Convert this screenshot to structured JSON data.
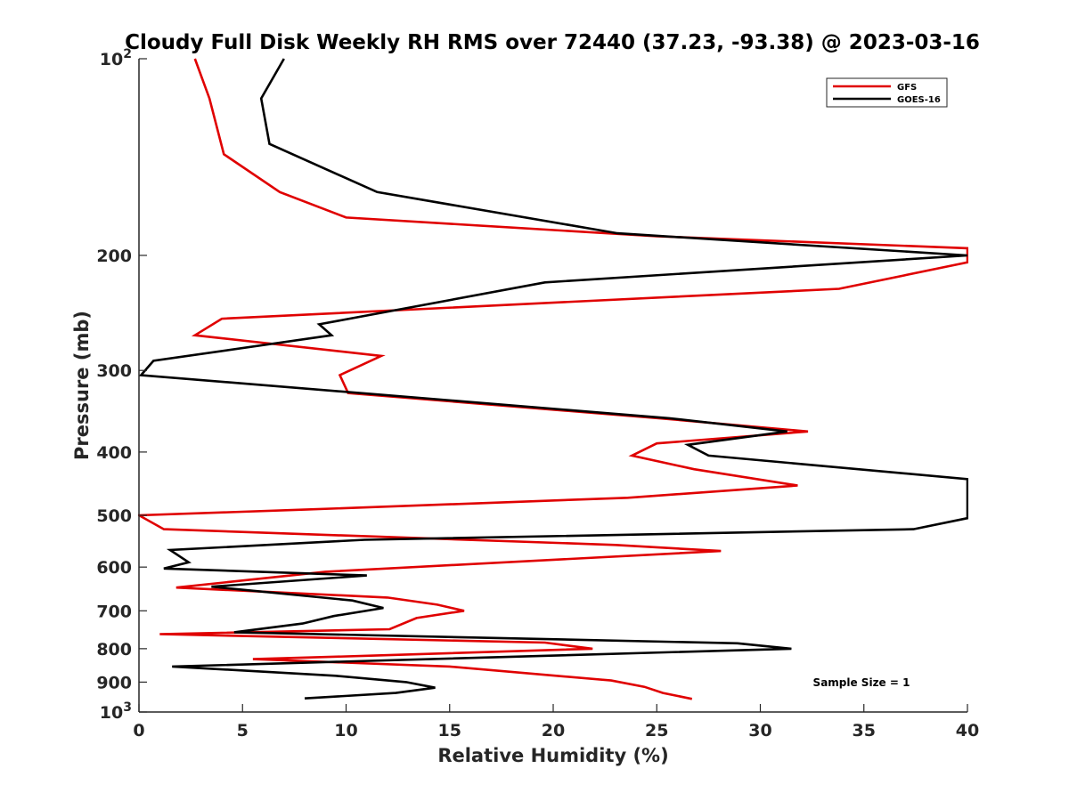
{
  "chart_data": {
    "type": "line",
    "title": "Cloudy Full Disk Weekly RH RMS over 72440 (37.23, -93.38) @ 2023-03-16",
    "xlabel": "Relative Humidity (%)",
    "ylabel": "Pressure (mb)",
    "xlim": [
      0,
      40
    ],
    "ylim": [
      100,
      1000
    ],
    "yscale": "log",
    "y_reversed": true,
    "x_ticks": [
      0,
      5,
      10,
      15,
      20,
      25,
      30,
      35,
      40
    ],
    "x_tick_labels": [
      "0",
      "5",
      "10",
      "15",
      "20",
      "25",
      "30",
      "35",
      "40"
    ],
    "y_ticks": [
      100,
      200,
      300,
      400,
      500,
      600,
      700,
      800,
      900,
      1000
    ],
    "y_tick_labels": [
      {
        "base": "10",
        "exp": "2"
      },
      {
        "base": "200",
        "exp": ""
      },
      {
        "base": "300",
        "exp": ""
      },
      {
        "base": "400",
        "exp": ""
      },
      {
        "base": "500",
        "exp": ""
      },
      {
        "base": "600",
        "exp": ""
      },
      {
        "base": "700",
        "exp": ""
      },
      {
        "base": "800",
        "exp": ""
      },
      {
        "base": "900",
        "exp": ""
      },
      {
        "base": "10",
        "exp": "3"
      }
    ],
    "grid": false,
    "legend_position": "top-right",
    "annotation": "Sample Size = 1",
    "series": [
      {
        "name": "GFS",
        "color": "#e00000",
        "points": [
          [
            2.7,
            100
          ],
          [
            3.4,
            115
          ],
          [
            4.1,
            140
          ],
          [
            6.8,
            160
          ],
          [
            10.0,
            175
          ],
          [
            25.0,
            187
          ],
          [
            40.0,
            195
          ],
          [
            40.0,
            205
          ],
          [
            33.8,
            225
          ],
          [
            4.0,
            250
          ],
          [
            2.7,
            265
          ],
          [
            11.7,
            285
          ],
          [
            9.7,
            305
          ],
          [
            10.1,
            325
          ],
          [
            25.1,
            355
          ],
          [
            32.3,
            372
          ],
          [
            25.0,
            388
          ],
          [
            23.8,
            405
          ],
          [
            26.8,
            425
          ],
          [
            31.8,
            450
          ],
          [
            23.6,
            470
          ],
          [
            8.0,
            490
          ],
          [
            0.0,
            500
          ],
          [
            1.2,
            525
          ],
          [
            23.0,
            555
          ],
          [
            28.1,
            567
          ],
          [
            9.0,
            610
          ],
          [
            1.8,
            645
          ],
          [
            12.0,
            668
          ],
          [
            14.4,
            685
          ],
          [
            15.7,
            700
          ],
          [
            13.4,
            718
          ],
          [
            12.1,
            747
          ],
          [
            1.0,
            760
          ],
          [
            19.6,
            783
          ],
          [
            21.9,
            800
          ],
          [
            11.2,
            820
          ],
          [
            5.5,
            830
          ],
          [
            15.0,
            852
          ],
          [
            22.8,
            895
          ],
          [
            24.4,
            915
          ],
          [
            25.3,
            935
          ],
          [
            26.7,
            955
          ]
        ]
      },
      {
        "name": "GOES-16",
        "color": "#000000",
        "points": [
          [
            7.0,
            100
          ],
          [
            5.9,
            115
          ],
          [
            6.3,
            135
          ],
          [
            11.5,
            160
          ],
          [
            23.1,
            185
          ],
          [
            40.0,
            200
          ],
          [
            19.6,
            220
          ],
          [
            8.7,
            255
          ],
          [
            9.3,
            265
          ],
          [
            0.7,
            290
          ],
          [
            0.1,
            305
          ],
          [
            25.6,
            355
          ],
          [
            31.3,
            372
          ],
          [
            26.5,
            390
          ],
          [
            27.5,
            405
          ],
          [
            40.0,
            440
          ],
          [
            40.0,
            505
          ],
          [
            37.4,
            525
          ],
          [
            10.9,
            545
          ],
          [
            1.5,
            565
          ],
          [
            2.4,
            590
          ],
          [
            1.2,
            603
          ],
          [
            11.0,
            618
          ],
          [
            3.5,
            643
          ],
          [
            10.3,
            675
          ],
          [
            11.8,
            693
          ],
          [
            9.4,
            713
          ],
          [
            7.9,
            732
          ],
          [
            4.6,
            755
          ],
          [
            28.9,
            785
          ],
          [
            31.5,
            800
          ],
          [
            1.6,
            852
          ],
          [
            9.5,
            880
          ],
          [
            12.9,
            900
          ],
          [
            14.3,
            918
          ],
          [
            12.4,
            935
          ],
          [
            8.0,
            953
          ]
        ]
      }
    ]
  }
}
